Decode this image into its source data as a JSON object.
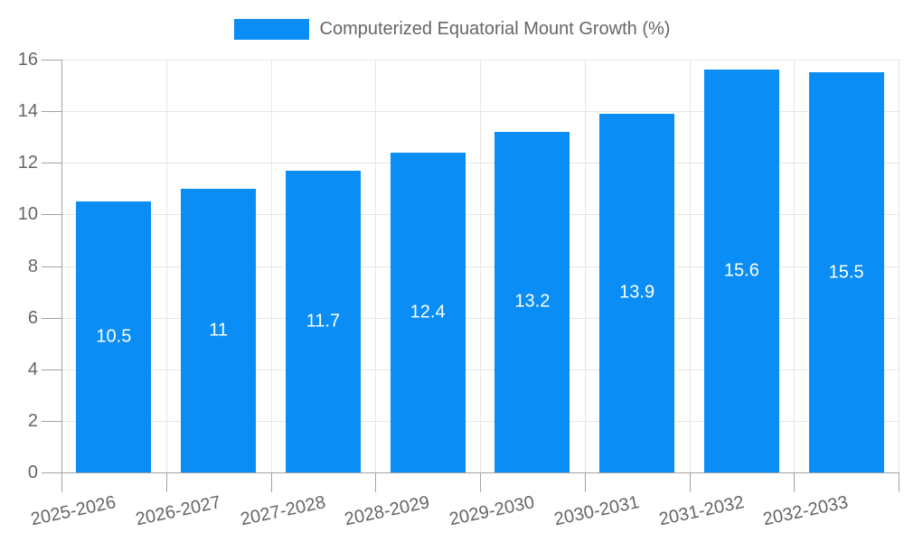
{
  "chart_data": {
    "type": "bar",
    "title": "Computerized Equatorial Mount Growth (%)",
    "categories": [
      "2025-2026",
      "2026-2027",
      "2027-2028",
      "2028-2029",
      "2029-2030",
      "2030-2031",
      "2031-2032",
      "2032-2033"
    ],
    "values": [
      10.5,
      11,
      11.7,
      12.4,
      13.2,
      13.9,
      15.6,
      15.5
    ],
    "data_labels": [
      "10.5",
      "11",
      "11.7",
      "12.4",
      "13.2",
      "13.9",
      "15.6",
      "15.5"
    ],
    "xlabel": "",
    "ylabel": "",
    "ylim": [
      0,
      16
    ],
    "yticks": [
      0,
      2,
      4,
      6,
      8,
      10,
      12,
      14,
      16
    ],
    "grid": true,
    "legend_position": "top",
    "bar_color": "#0a8ef5",
    "value_label_color": "#ffffff",
    "grid_color": "#e6e6e6",
    "axis_color": "#a3a3a3",
    "tick_label_color": "#666666"
  }
}
